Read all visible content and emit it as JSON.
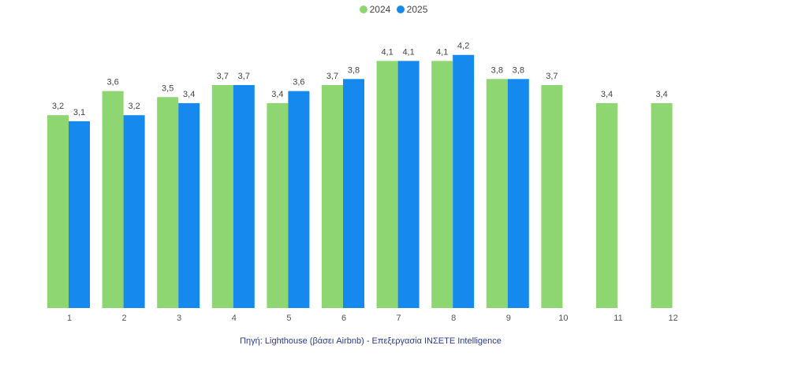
{
  "chart_data": {
    "type": "bar",
    "categories": [
      "1",
      "2",
      "3",
      "4",
      "5",
      "6",
      "7",
      "8",
      "9",
      "10",
      "11",
      "12"
    ],
    "series": [
      {
        "name": "2024",
        "color": "#8ed672",
        "values": [
          3.2,
          3.6,
          3.5,
          3.7,
          3.4,
          3.7,
          4.1,
          4.1,
          3.8,
          3.7,
          3.4,
          3.4
        ],
        "labels": [
          "3,2",
          "3,6",
          "3,5",
          "3,7",
          "3,4",
          "3,7",
          "4,1",
          "4,1",
          "3,8",
          "3,7",
          "3,4",
          "3,4"
        ]
      },
      {
        "name": "2025",
        "color": "#1589ee",
        "values": [
          3.1,
          3.2,
          3.4,
          3.7,
          3.6,
          3.8,
          4.1,
          4.2,
          3.8,
          null,
          null,
          null
        ],
        "labels": [
          "3,1",
          "3,2",
          "3,4",
          "3,7",
          "3,6",
          "3,8",
          "4,1",
          "4,2",
          "3,8",
          null,
          null,
          null
        ]
      }
    ],
    "ylim": [
      0,
      4.5
    ],
    "grid": false,
    "legend": "top-center",
    "source": "Πηγή: Lighthouse (βάσει Airbnb) - Επεξεργασία INΣETE Intelligence"
  }
}
